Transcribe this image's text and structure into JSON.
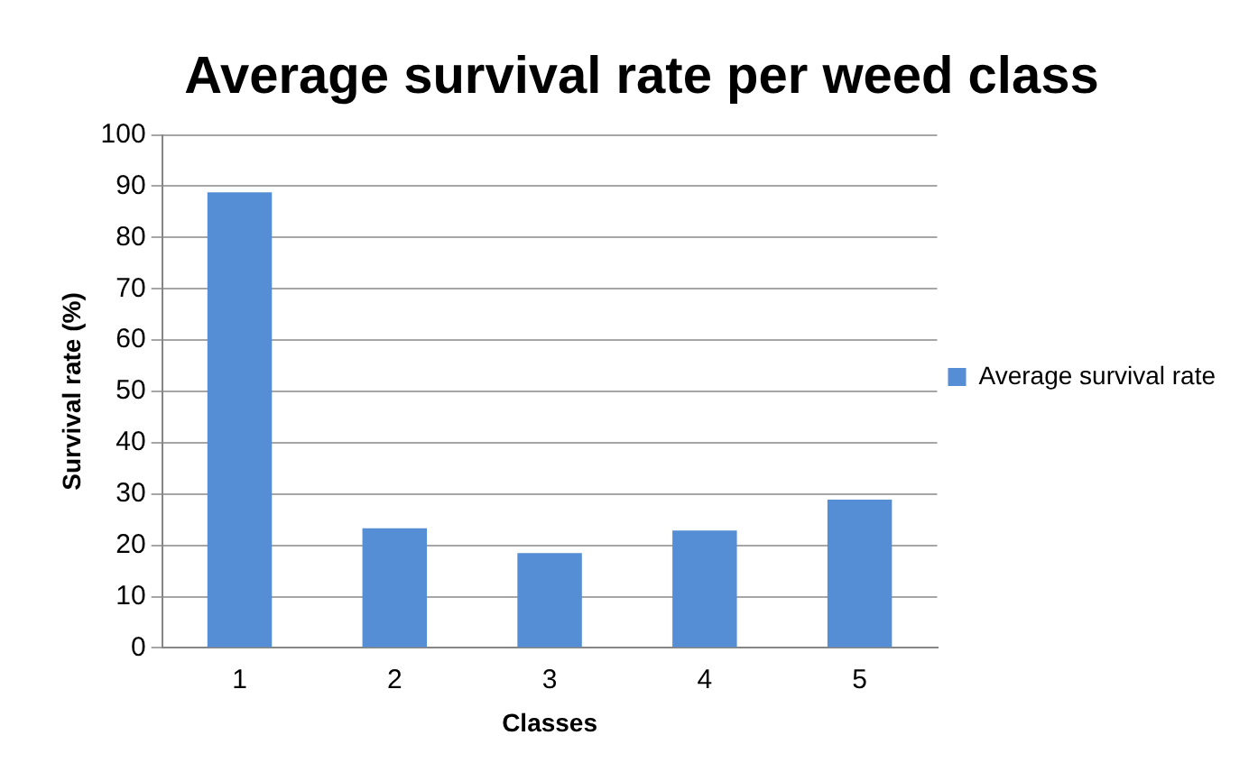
{
  "chart_data": {
    "type": "bar",
    "title": "Average survival rate per weed class",
    "xlabel": "Classes",
    "ylabel": "Survival rate (%)",
    "categories": [
      "1",
      "2",
      "3",
      "4",
      "5"
    ],
    "series": [
      {
        "name": "Average survival rate",
        "color": "#558ed5",
        "values": [
          88.8,
          23.3,
          18.5,
          22.9,
          28.9
        ]
      }
    ],
    "ylim": [
      0,
      100
    ],
    "yticks": [
      0,
      10,
      20,
      30,
      40,
      50,
      60,
      70,
      80,
      90,
      100
    ],
    "grid": "y",
    "legend": "right"
  }
}
